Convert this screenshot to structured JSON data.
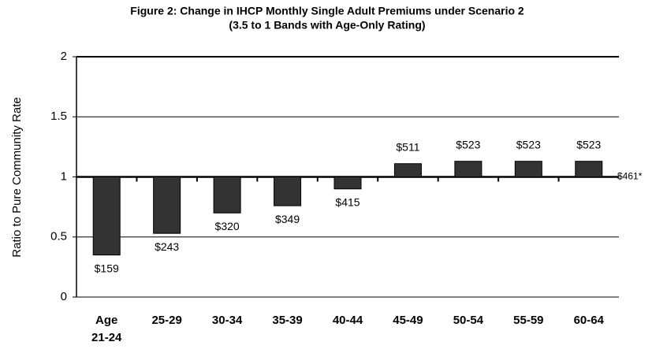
{
  "chart_data": {
    "type": "bar",
    "title": "Figure 2: Change in IHCP Monthly Single Adult Premiums under Scenario 2",
    "subtitle": "(3.5 to 1 Bands with Age-Only Rating)",
    "y_label": "Ratio to Pure Community Rate",
    "categories": [
      "Age 21-24",
      "25-29",
      "30-34",
      "35-39",
      "40-44",
      "45-49",
      "50-54",
      "55-59",
      "60-64"
    ],
    "values": [
      0.35,
      0.53,
      0.7,
      0.76,
      0.9,
      1.11,
      1.13,
      1.13,
      1.13
    ],
    "premium_labels": [
      "$159",
      "$243",
      "$320",
      "$349",
      "$415",
      "$511",
      "$523",
      "$523",
      "$523"
    ],
    "baseline": 1,
    "baseline_label": "$461*",
    "color": "#333333",
    "ylim": [
      0,
      2
    ],
    "yticks": [
      0,
      0.5,
      1,
      1.5,
      2
    ],
    "grid": true
  }
}
